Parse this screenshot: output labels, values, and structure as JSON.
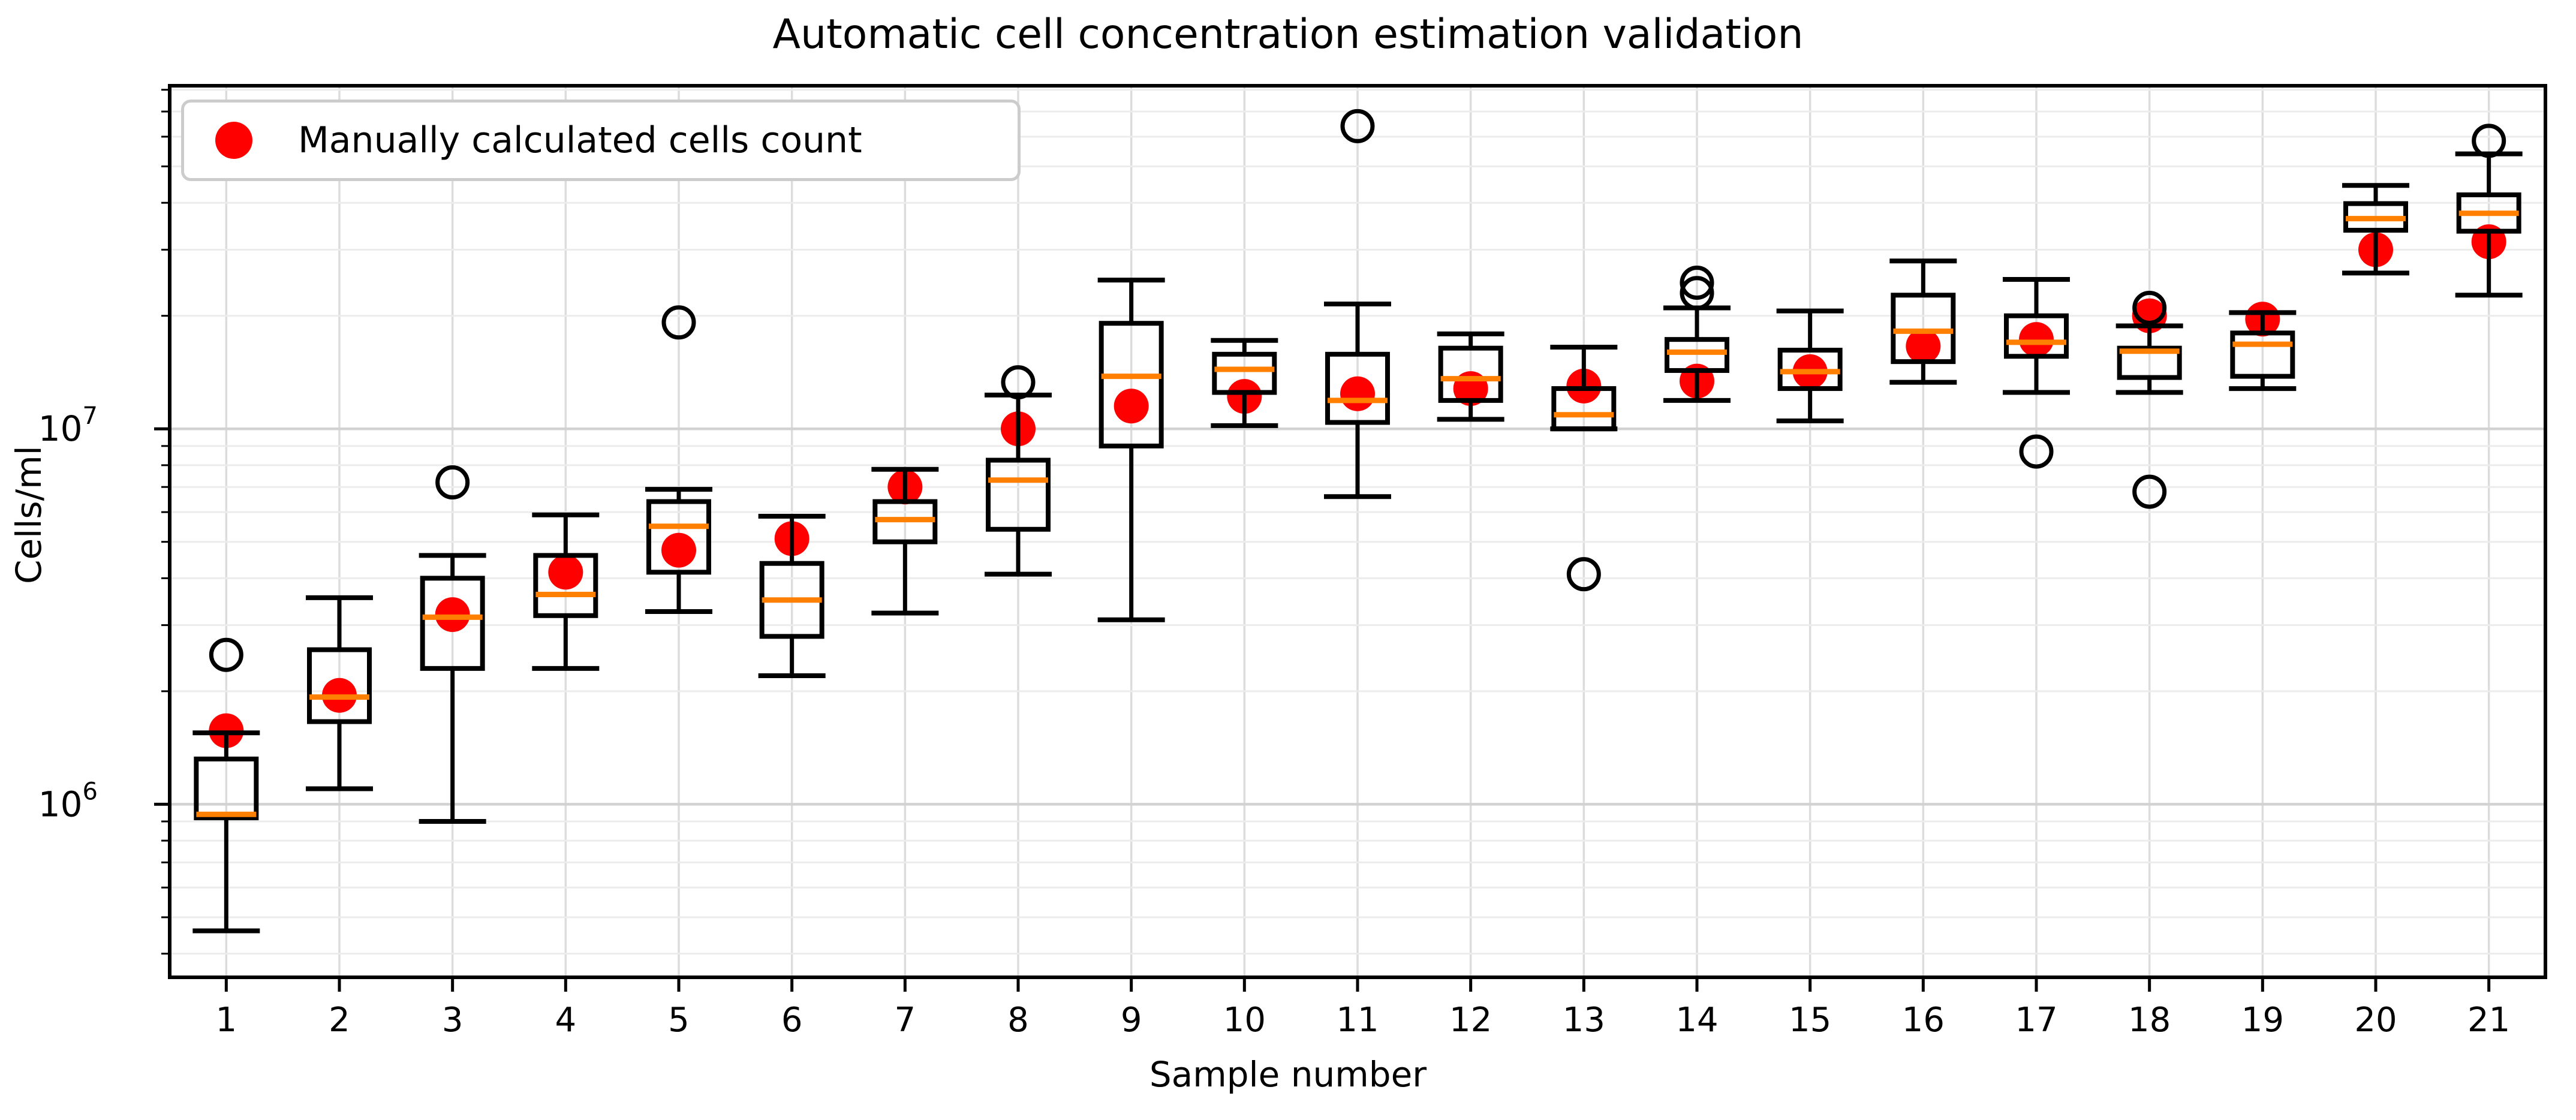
{
  "title": "Automatic cell concentration estimation validation",
  "legend": {
    "label": "Manually calculated cells count",
    "marker_color": "#ff0000"
  },
  "axes": {
    "xlabel": "Sample number",
    "ylabel": "Cells/ml",
    "x_ticks": [
      "1",
      "2",
      "3",
      "4",
      "5",
      "6",
      "7",
      "8",
      "9",
      "10",
      "11",
      "12",
      "13",
      "14",
      "15",
      "16",
      "17",
      "18",
      "19",
      "20",
      "21"
    ],
    "y_major_ticks": [
      {
        "base": "10",
        "exp": "6",
        "value": 1000000
      },
      {
        "base": "10",
        "exp": "7",
        "value": 10000000
      }
    ]
  },
  "colors": {
    "box_edge": "#000000",
    "median": "#ff8000",
    "manual_dot": "#ff0000",
    "flier_edge": "#000000",
    "grid_minor": "#ececec",
    "grid_major": "#d2d2d2",
    "grid_vertical": "#dcdcdc",
    "spine": "#000000",
    "background": "#ffffff"
  },
  "chart_data": {
    "type": "boxplot",
    "title": "Automatic cell concentration estimation validation",
    "xlabel": "Sample number",
    "ylabel": "Cells/ml",
    "yscale": "log",
    "ylim": [
      346000,
      82000000
    ],
    "grid": "both",
    "legend_position": "upper left",
    "categories": [
      1,
      2,
      3,
      4,
      5,
      6,
      7,
      8,
      9,
      10,
      11,
      12,
      13,
      14,
      15,
      16,
      17,
      18,
      19,
      20,
      21
    ],
    "series_legend": "Manually calculated cells count",
    "boxes": [
      {
        "sample": 1,
        "whislo": 460000,
        "q1": 920000,
        "med": 940000,
        "q3": 1320000,
        "whishi": 1550000,
        "manual_count": 1570000,
        "fliers": [
          2500000
        ]
      },
      {
        "sample": 2,
        "whislo": 1100000,
        "q1": 1660000,
        "med": 1930000,
        "q3": 2580000,
        "whishi": 3550000,
        "manual_count": 1950000,
        "fliers": []
      },
      {
        "sample": 3,
        "whislo": 900000,
        "q1": 2300000,
        "med": 3150000,
        "q3": 4000000,
        "whishi": 4600000,
        "manual_count": 3200000,
        "fliers": [
          7200000
        ]
      },
      {
        "sample": 4,
        "whislo": 2300000,
        "q1": 3180000,
        "med": 3620000,
        "q3": 4600000,
        "whishi": 5900000,
        "manual_count": 4150000,
        "fliers": []
      },
      {
        "sample": 5,
        "whislo": 3260000,
        "q1": 4150000,
        "med": 5500000,
        "q3": 6400000,
        "whishi": 6900000,
        "manual_count": 4750000,
        "fliers": [
          19200000
        ]
      },
      {
        "sample": 6,
        "whislo": 2200000,
        "q1": 2800000,
        "med": 3500000,
        "q3": 4380000,
        "whishi": 5850000,
        "manual_count": 5100000,
        "fliers": []
      },
      {
        "sample": 7,
        "whislo": 3230000,
        "q1": 5000000,
        "med": 5730000,
        "q3": 6400000,
        "whishi": 7800000,
        "manual_count": 7000000,
        "fliers": []
      },
      {
        "sample": 8,
        "whislo": 4100000,
        "q1": 5400000,
        "med": 7300000,
        "q3": 8250000,
        "whishi": 12300000,
        "manual_count": 10000000,
        "fliers": [
          13300000
        ]
      },
      {
        "sample": 9,
        "whislo": 3100000,
        "q1": 9000000,
        "med": 13800000,
        "q3": 19100000,
        "whishi": 24900000,
        "manual_count": 11500000,
        "fliers": []
      },
      {
        "sample": 10,
        "whislo": 10200000,
        "q1": 12500000,
        "med": 14400000,
        "q3": 15800000,
        "whishi": 17200000,
        "manual_count": 12200000,
        "fliers": []
      },
      {
        "sample": 11,
        "whislo": 6600000,
        "q1": 10400000,
        "med": 11900000,
        "q3": 15800000,
        "whishi": 21500000,
        "manual_count": 12400000,
        "fliers": [
          64000000
        ]
      },
      {
        "sample": 12,
        "whislo": 10600000,
        "q1": 11900000,
        "med": 13600000,
        "q3": 16400000,
        "whishi": 17900000,
        "manual_count": 12800000,
        "fliers": []
      },
      {
        "sample": 13,
        "whislo": 10000000,
        "q1": 10000000,
        "med": 10900000,
        "q3": 12800000,
        "whishi": 16500000,
        "manual_count": 13000000,
        "fliers": [
          4100000
        ]
      },
      {
        "sample": 14,
        "whislo": 11900000,
        "q1": 14300000,
        "med": 16000000,
        "q3": 17300000,
        "whishi": 21000000,
        "manual_count": 13400000,
        "fliers": [
          24500000,
          23000000
        ]
      },
      {
        "sample": 15,
        "whislo": 10500000,
        "q1": 12800000,
        "med": 14200000,
        "q3": 16200000,
        "whishi": 20600000,
        "manual_count": 14200000,
        "fliers": []
      },
      {
        "sample": 16,
        "whislo": 13300000,
        "q1": 15100000,
        "med": 18200000,
        "q3": 22700000,
        "whishi": 28000000,
        "manual_count": 16600000,
        "fliers": []
      },
      {
        "sample": 17,
        "whislo": 12500000,
        "q1": 15600000,
        "med": 17000000,
        "q3": 20000000,
        "whishi": 25000000,
        "manual_count": 17300000,
        "fliers": [
          8700000
        ]
      },
      {
        "sample": 18,
        "whislo": 12500000,
        "q1": 13700000,
        "med": 16100000,
        "q3": 16400000,
        "whishi": 18800000,
        "manual_count": 20000000,
        "fliers": [
          21000000,
          6800000
        ]
      },
      {
        "sample": 19,
        "whislo": 12800000,
        "q1": 13800000,
        "med": 16800000,
        "q3": 18000000,
        "whishi": 20400000,
        "manual_count": 19600000,
        "fliers": []
      },
      {
        "sample": 20,
        "whislo": 26000000,
        "q1": 33800000,
        "med": 36300000,
        "q3": 39800000,
        "whishi": 44500000,
        "manual_count": 30000000,
        "fliers": []
      },
      {
        "sample": 21,
        "whislo": 22700000,
        "q1": 33600000,
        "med": 37500000,
        "q3": 42000000,
        "whishi": 54000000,
        "manual_count": 31500000,
        "fliers": [
          58500000
        ]
      }
    ]
  }
}
